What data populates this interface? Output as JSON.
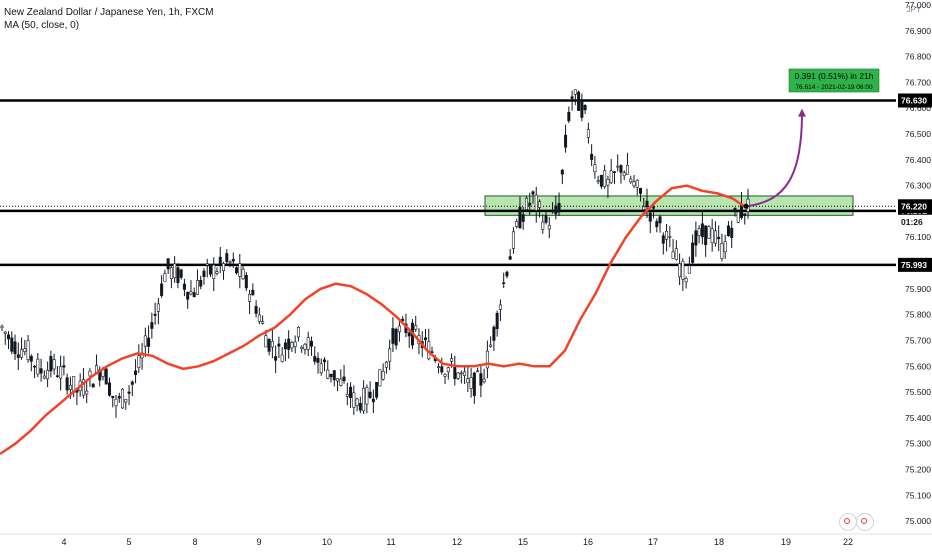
{
  "legend": {
    "symbol_line": "New Zealand Dollar / Japanese Yen, 1h, FXCM",
    "indicator_line": "MA (50, close, 0)"
  },
  "currency_label": "JPY",
  "colors": {
    "up_candle": "#131722",
    "down_candle": "#131722",
    "ma_line": "#f0432a",
    "zone_fill": "#b9e6b0",
    "zone_border": "#1b5e20",
    "arrow": "#8e2a8e",
    "projection_box": "#2db34a"
  },
  "chart_data": {
    "type": "candlestick",
    "title": "",
    "ylim": [
      74.95,
      77.0
    ],
    "y_ticks": [
      "77.000",
      "76.900",
      "76.800",
      "76.700",
      "76.600",
      "76.500",
      "76.400",
      "76.300",
      "76.200",
      "76.100",
      "76.000",
      "75.900",
      "75.800",
      "75.700",
      "75.600",
      "75.500",
      "75.400",
      "75.300",
      "75.200",
      "75.100",
      "75.000"
    ],
    "x_ticks": [
      "4",
      "5",
      "8",
      "9",
      "10",
      "11",
      "12",
      "15",
      "16",
      "17",
      "18",
      "19",
      "22"
    ],
    "horizontal_levels": [
      {
        "label": "76.630",
        "value": 76.63
      },
      {
        "label": "76.202",
        "value": 76.202
      },
      {
        "label": "75.993",
        "value": 75.993
      }
    ],
    "price_labels": [
      {
        "text": "76.220",
        "value": 76.22,
        "style": "current"
      },
      {
        "text": "01:26",
        "value": 76.16,
        "style": "countdown"
      }
    ],
    "support_zone": {
      "from_x": "15",
      "top": 76.26,
      "bottom": 76.185
    },
    "ma_period": 50,
    "ma_values": [
      75.26,
      75.3,
      75.35,
      75.41,
      75.46,
      75.51,
      75.56,
      75.6,
      75.63,
      75.65,
      75.64,
      75.61,
      75.59,
      75.6,
      75.62,
      75.65,
      75.68,
      75.72,
      75.75,
      75.8,
      75.86,
      75.9,
      75.92,
      75.91,
      75.88,
      75.84,
      75.79,
      75.73,
      75.66,
      75.61,
      75.6,
      75.6,
      75.61,
      75.6,
      75.61,
      75.6,
      75.6,
      75.66,
      75.78,
      75.88,
      76.0,
      76.1,
      76.18,
      76.24,
      76.29,
      76.3,
      76.28,
      76.27,
      76.25,
      76.21
    ],
    "ohlc_trend": [
      75.75,
      75.68,
      75.66,
      75.58,
      75.6,
      75.56,
      75.5,
      75.55,
      75.6,
      75.45,
      75.5,
      75.62,
      75.78,
      75.98,
      75.95,
      75.88,
      75.95,
      75.98,
      76.0,
      75.95,
      75.85,
      75.7,
      75.65,
      75.72,
      75.7,
      75.62,
      75.58,
      75.52,
      75.46,
      75.48,
      75.55,
      75.72,
      75.75,
      75.7,
      75.66,
      75.6,
      75.58,
      75.52,
      75.55,
      75.75,
      76.0,
      76.18,
      76.25,
      76.15,
      76.2,
      76.65,
      76.6,
      76.35,
      76.3,
      76.38,
      76.3,
      76.22,
      76.15,
      76.05,
      75.95,
      76.1,
      76.12,
      76.05,
      76.18,
      76.22
    ],
    "projection": {
      "text": "0.391 (0.51%) in 21h",
      "subtext": "76.614 ◦ 2021-02-19 06:00",
      "start_value": 76.22,
      "end_value": 76.614
    }
  }
}
